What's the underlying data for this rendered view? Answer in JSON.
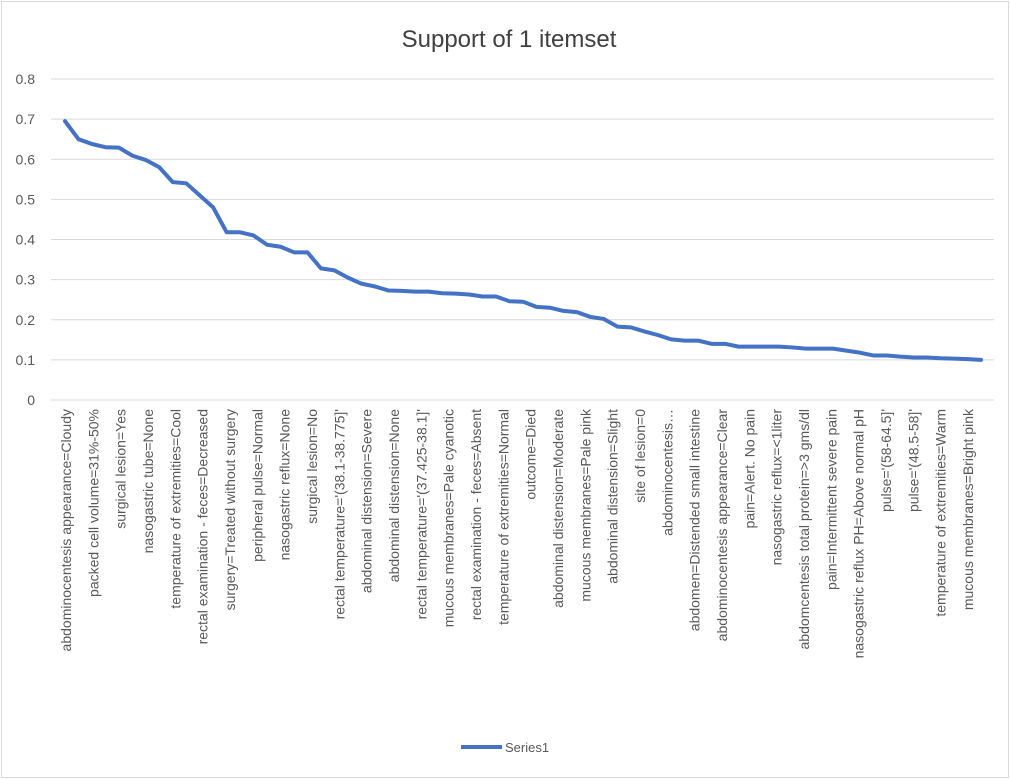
{
  "chart_data": {
    "type": "line",
    "title": "Support of 1 itemset",
    "xlabel": "",
    "ylabel": "",
    "ylim": [
      0,
      0.8
    ],
    "yticks": [
      "0",
      "0.1",
      "0.2",
      "0.3",
      "0.4",
      "0.5",
      "0.6",
      "0.7",
      "0.8"
    ],
    "grid": true,
    "legend_position": "bottom",
    "x_labels_visible": [
      "abdominocentesis appearance=Cloudy",
      "packed cell volume=31%-50%",
      "surgical lesion=Yes",
      "nasogastric tube=None",
      "temperature of extremities=Cool",
      "rectal examination - feces=Decreased",
      "surgery=Treated without surgery",
      "peripheral pulse=Normal",
      "nasogastric reflux=None",
      "surgical lesion=No",
      "rectal temperature='(38.1-38.775]'",
      "abdominal distension=Severe",
      "abdominal distension=None",
      "rectal temperature='(37.425-38.1]'",
      "mucous membranes=Pale cyanotic",
      "rectal examination - feces=Absent",
      "temperature of extremities=Normal",
      "outcome=Died",
      "abdominal distension=Moderate",
      "mucous membranes=Pale pink",
      "abdominal distension=Slight",
      "site of lesion=0",
      "abdominocentesis…",
      "abdomen=Distended small intestine",
      "abdominocentesis appearance=Clear",
      "pain=Alert. No pain",
      "nasogastric reflux=<1liter",
      "abdomcentesis total protein=>3 gms/dl",
      "pain=Intermittent severe pain",
      "nasogastric reflux PH=Above normal pH",
      "pulse='(58-64.5]'",
      "pulse='(48.5-58]'",
      "temperature of extremities=Warm",
      "mucous membranes=Bright pink"
    ],
    "series": [
      {
        "name": "Series1",
        "color": "#4472c4",
        "values": [
          0.695,
          0.65,
          0.638,
          0.63,
          0.629,
          0.609,
          0.598,
          0.58,
          0.543,
          0.54,
          0.51,
          0.48,
          0.418,
          0.418,
          0.41,
          0.387,
          0.382,
          0.368,
          0.368,
          0.328,
          0.323,
          0.305,
          0.29,
          0.283,
          0.273,
          0.272,
          0.27,
          0.27,
          0.266,
          0.265,
          0.263,
          0.258,
          0.258,
          0.246,
          0.245,
          0.232,
          0.23,
          0.222,
          0.219,
          0.207,
          0.202,
          0.183,
          0.181,
          0.171,
          0.162,
          0.151,
          0.148,
          0.148,
          0.14,
          0.14,
          0.133,
          0.133,
          0.133,
          0.133,
          0.131,
          0.128,
          0.128,
          0.128,
          0.123,
          0.118,
          0.111,
          0.111,
          0.108,
          0.106,
          0.106,
          0.104,
          0.103,
          0.102,
          0.1
        ]
      }
    ]
  }
}
